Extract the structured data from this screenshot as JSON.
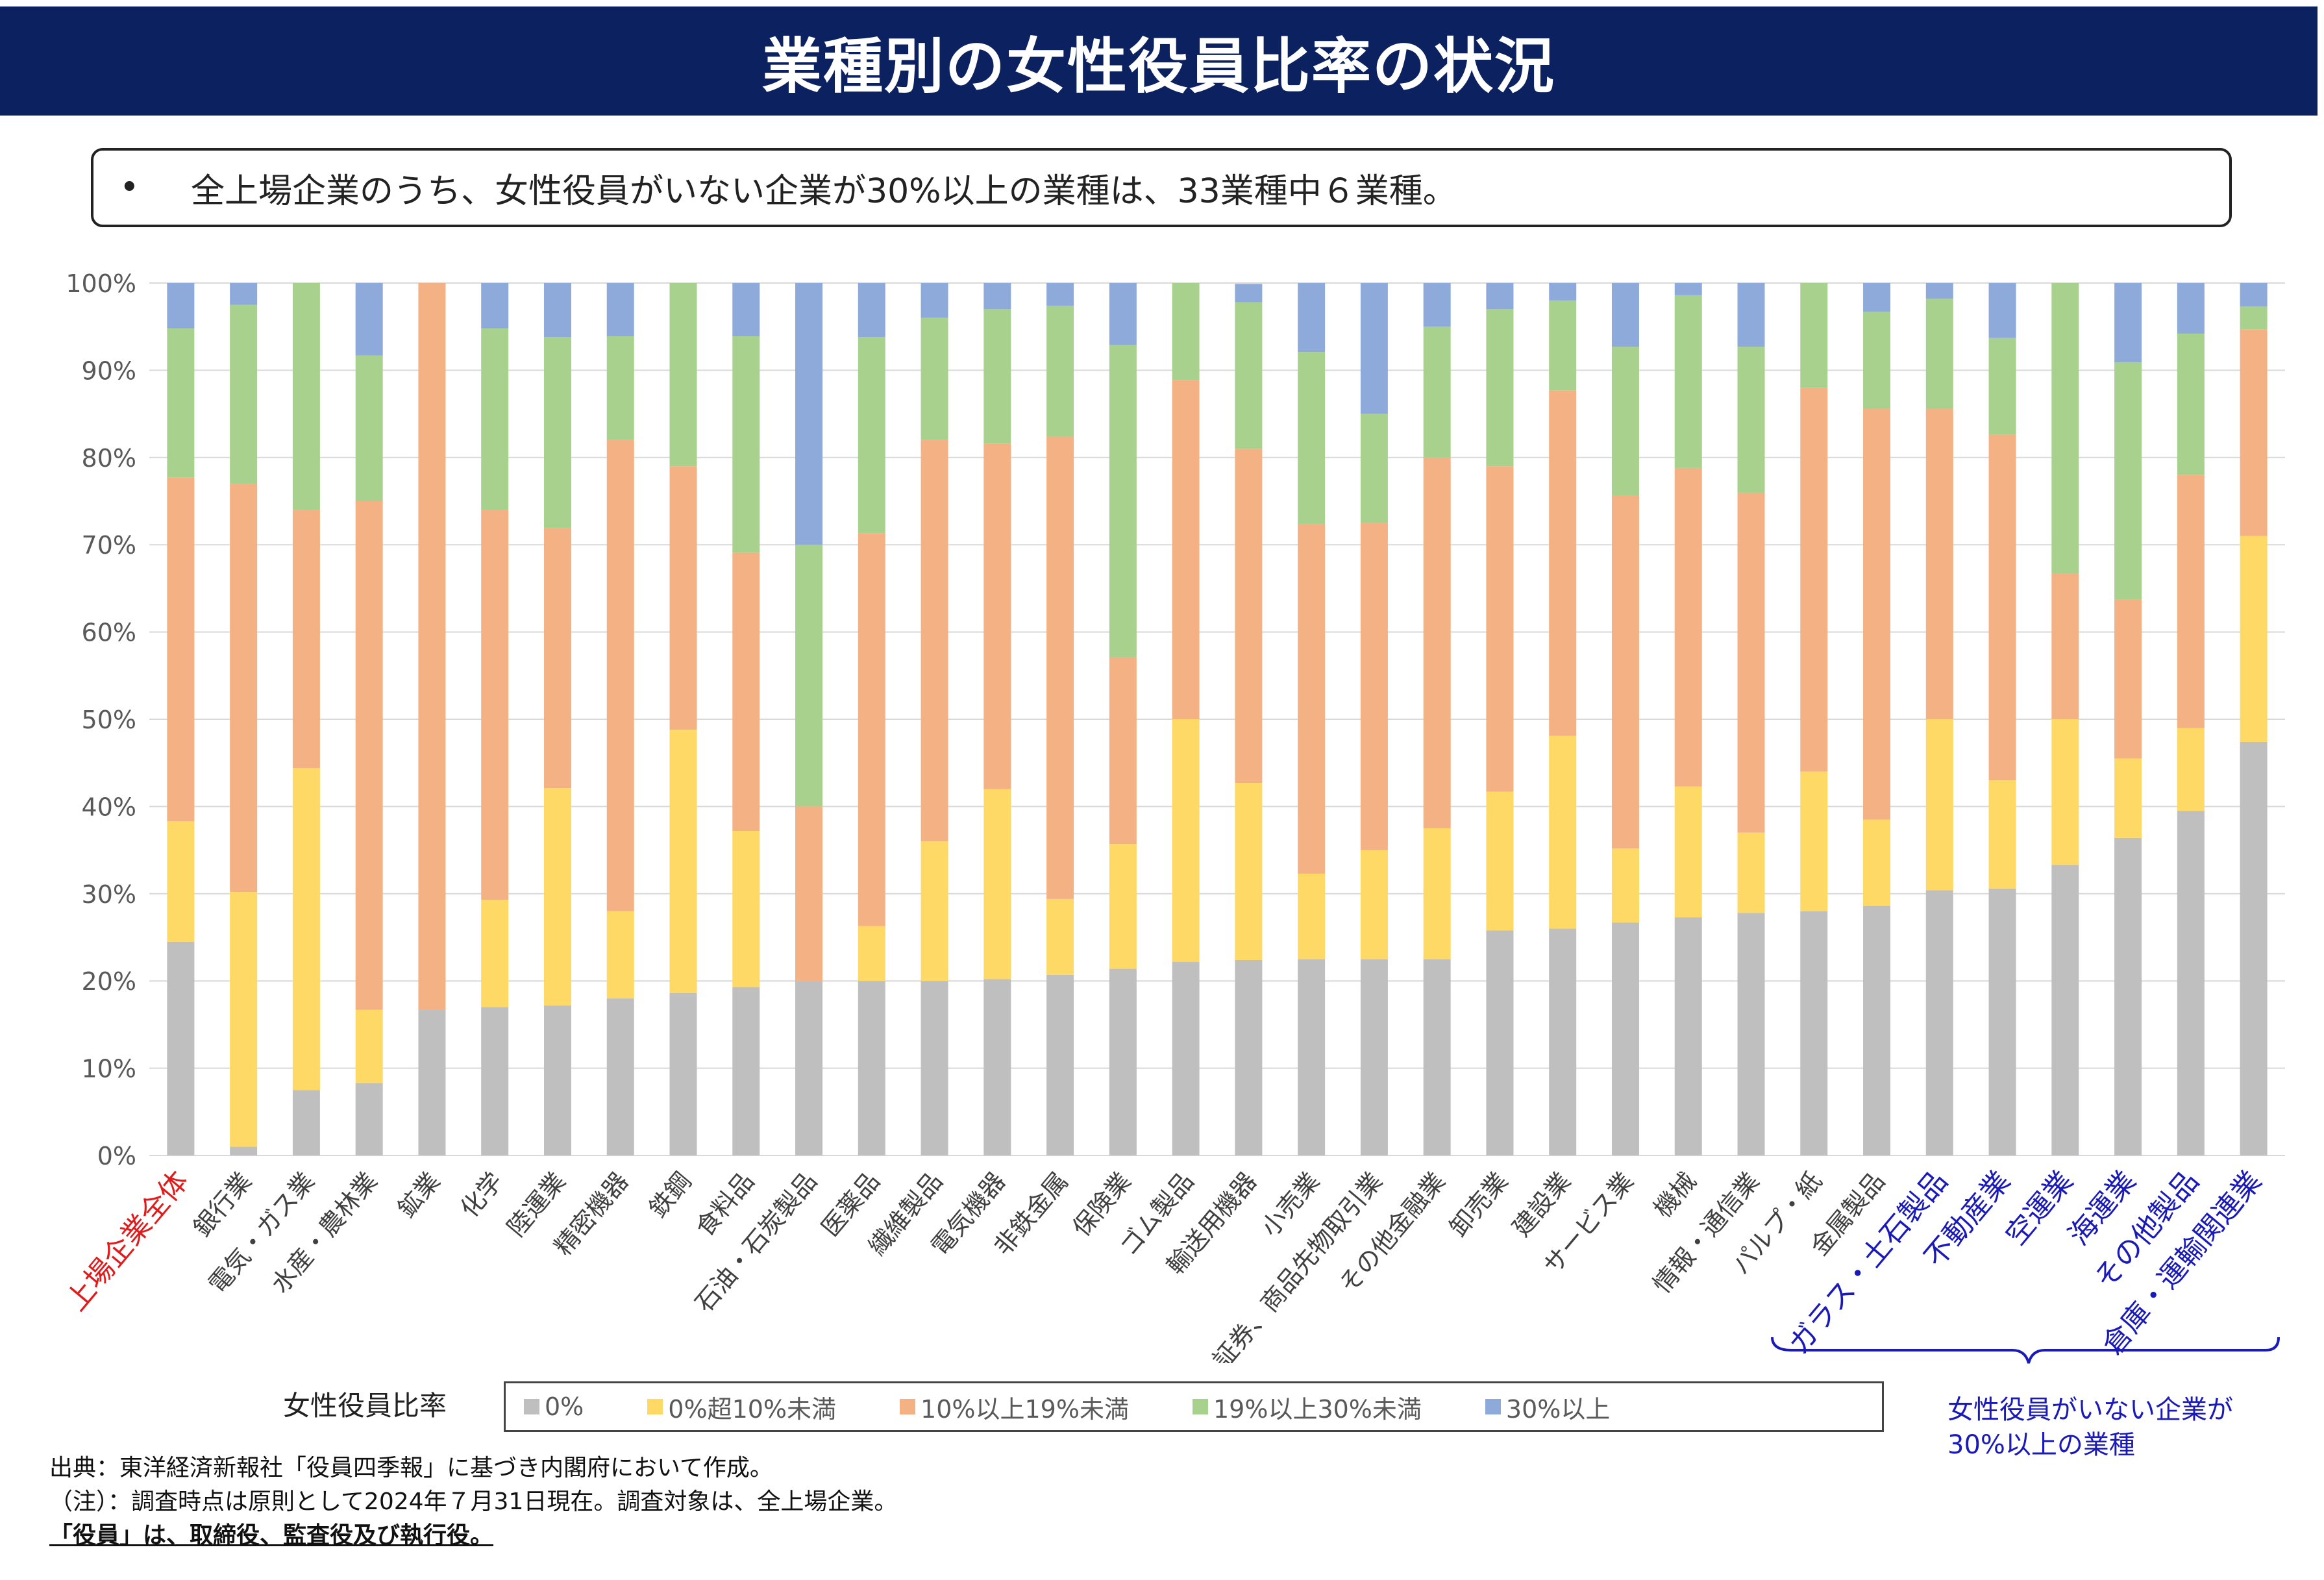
{
  "title": "業種別の女性役員比率の状況",
  "bullet": {
    "mark": "•",
    "text": "全上場企業のうち、女性役員がいない企業が30%以上の業種は、33業種中６業種。"
  },
  "colors": {
    "series": [
      "#bfbfbf",
      "#ffd966",
      "#f4b183",
      "#a9d18e",
      "#8eaadb"
    ],
    "highlight_red": "#e01b1b",
    "highlight_blue": "#1a1ab8",
    "default_label": "#404040",
    "title_bg": "#0b2160"
  },
  "legend": {
    "title": "女性役員比率",
    "items": [
      "0%",
      "0%超10%未満",
      "10%以上19%未満",
      "19%以上30%未満",
      "30%以上"
    ]
  },
  "chart_data": {
    "type": "bar",
    "stacked": true,
    "ylim": [
      0,
      100
    ],
    "yticks": [
      "0%",
      "10%",
      "20%",
      "30%",
      "40%",
      "50%",
      "60%",
      "70%",
      "80%",
      "90%",
      "100%"
    ],
    "grid": true,
    "categories": [
      "上場企業全体",
      "銀行業",
      "電気・ガス業",
      "水産・農林業",
      "鉱業",
      "化学",
      "陸運業",
      "精密機器",
      "鉄鋼",
      "食料品",
      "石油・石炭製品",
      "医薬品",
      "繊維製品",
      "電気機器",
      "非鉄金属",
      "保険業",
      "ゴム製品",
      "輸送用機器",
      "小売業",
      "証券、商品先物取引業",
      "その他金融業",
      "卸売業",
      "建設業",
      "サービス業",
      "機械",
      "情報・通信業",
      "パルプ・紙",
      "金属製品",
      "ガラス・土石製品",
      "不動産業",
      "空運業",
      "海運業",
      "その他製品",
      "倉庫・運輸関連業"
    ],
    "category_style": [
      "red",
      "normal",
      "normal",
      "normal",
      "normal",
      "normal",
      "normal",
      "normal",
      "normal",
      "normal",
      "normal",
      "normal",
      "normal",
      "normal",
      "normal",
      "normal",
      "normal",
      "normal",
      "normal",
      "normal",
      "normal",
      "normal",
      "normal",
      "normal",
      "normal",
      "normal",
      "normal",
      "normal",
      "blue",
      "blue",
      "blue",
      "blue",
      "blue",
      "blue"
    ],
    "series": [
      {
        "name": "0%",
        "values": [
          24.5,
          1,
          7.5,
          8.3,
          16.7,
          17,
          17.2,
          18,
          18.6,
          19.3,
          20,
          20,
          20,
          20.2,
          20.7,
          21.4,
          22.2,
          22.4,
          22.5,
          22.5,
          22.5,
          25.8,
          26,
          26.7,
          27.3,
          27.8,
          28,
          28.6,
          30.4,
          30.6,
          33.3,
          36.4,
          39.5,
          47.4
        ]
      },
      {
        "name": "0%超10%未満",
        "values": [
          13.8,
          29.2,
          36.9,
          8.4,
          0,
          12.3,
          24.9,
          10,
          30.2,
          17.9,
          0,
          6.3,
          16,
          21.8,
          8.7,
          14.3,
          27.8,
          20.3,
          9.8,
          12.5,
          15,
          15.9,
          22.1,
          8.5,
          15,
          9.2,
          16,
          9.9,
          19.6,
          12.4,
          16.7,
          9.1,
          9.5,
          23.6
        ]
      },
      {
        "name": "10%以上19%未満",
        "values": [
          39.4,
          46.8,
          29.6,
          58.3,
          83.3,
          44.7,
          29.8,
          54,
          30.2,
          31.9,
          20,
          45,
          46,
          39.6,
          53,
          21.4,
          38.9,
          38.3,
          40.1,
          37.5,
          42.5,
          37.3,
          39.6,
          40.4,
          36.5,
          38.9,
          44,
          47.1,
          35.6,
          39.6,
          16.7,
          18.2,
          29,
          23.7
        ]
      },
      {
        "name": "19%以上30%未満",
        "values": [
          17.1,
          20.5,
          26,
          16.7,
          0,
          20.8,
          21.9,
          11.9,
          21,
          24.8,
          30,
          22.5,
          14,
          15.4,
          15,
          35.8,
          11.1,
          16.8,
          19.7,
          12.5,
          15,
          18,
          10.3,
          17.1,
          19.8,
          16.8,
          12,
          11.1,
          12.6,
          11.1,
          33.3,
          27.2,
          16.2,
          2.6
        ]
      },
      {
        "name": "30%以上",
        "values": [
          5.2,
          2.5,
          0,
          8.3,
          0,
          5.2,
          6.2,
          6.1,
          0,
          6.1,
          30,
          6.2,
          4,
          3,
          2.6,
          7.1,
          0,
          2.1,
          7.9,
          15,
          5,
          3,
          2,
          7.3,
          1.4,
          7.3,
          0,
          3.3,
          1.8,
          6.3,
          0,
          9.1,
          5.8,
          2.7
        ]
      }
    ]
  },
  "brace_note": {
    "line1": "女性役員がいない企業が",
    "line2": "30%以上の業種"
  },
  "footer": {
    "source": "出典：東洋経済新報社「役員四季報」に基づき内閣府において作成。",
    "note": "（注）：調査時点は原則として2024年７月31日現在。調査対象は、全上場企業。",
    "definition": "「役員」は、取締役、監査役及び執行役。"
  }
}
